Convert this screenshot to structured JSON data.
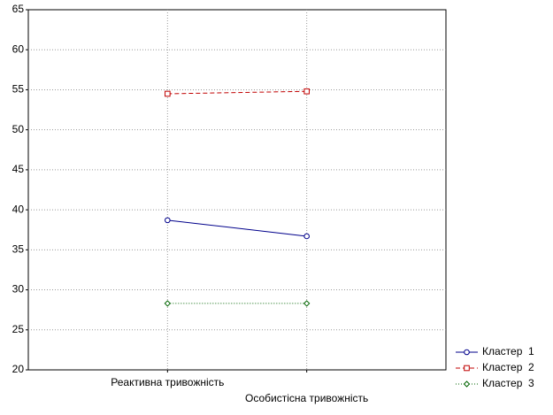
{
  "chart_data": {
    "type": "line",
    "categories": [
      "Реактивна тривожність",
      "Особистісна тривожність"
    ],
    "series": [
      {
        "name": "Кластер  1",
        "color": "#00008b",
        "marker": "circle",
        "line_style": "solid",
        "values": [
          38.7,
          36.7
        ]
      },
      {
        "name": "Кластер  2",
        "color": "#c00000",
        "marker": "square",
        "line_style": "dashed",
        "values": [
          54.5,
          54.8
        ]
      },
      {
        "name": "Кластер  3",
        "color": "#006400",
        "marker": "diamond",
        "line_style": "dotted",
        "values": [
          28.3,
          28.3
        ]
      }
    ],
    "ylim": [
      20,
      65
    ],
    "yticks": [
      20,
      25,
      30,
      35,
      40,
      45,
      50,
      55,
      60,
      65
    ],
    "grid": true,
    "legend": "bottom-right"
  }
}
